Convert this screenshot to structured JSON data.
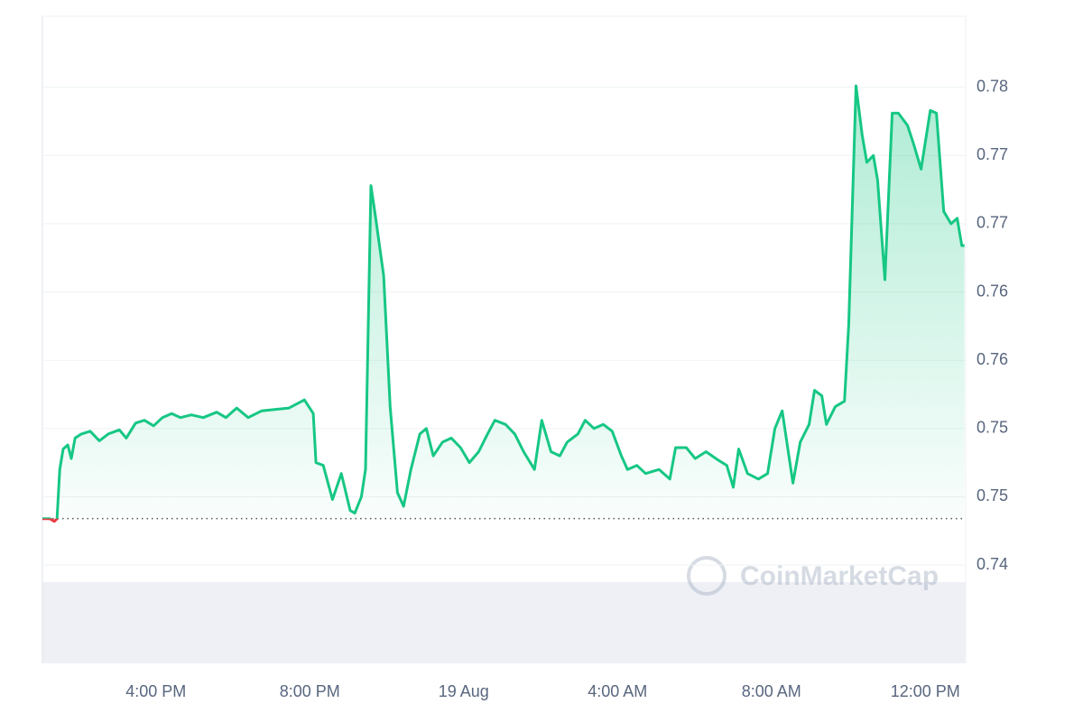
{
  "chart_data": {
    "type": "line",
    "watermark": "CoinMarketCap",
    "color": "#16c784",
    "down_color": "#ea3943",
    "grid": true,
    "reference_line": 0.7459,
    "x": [
      13.05,
      13.24,
      13.36,
      13.43,
      13.5,
      13.59,
      13.71,
      13.8,
      13.9,
      14.06,
      14.29,
      14.53,
      14.76,
      15.05,
      15.23,
      15.47,
      15.7,
      15.94,
      16.17,
      16.41,
      16.64,
      16.92,
      17.23,
      17.58,
      17.82,
      18.1,
      18.4,
      18.75,
      19.11,
      19.46,
      19.86,
      20.09,
      20.16,
      20.35,
      20.59,
      20.82,
      21.05,
      21.17,
      21.34,
      21.45,
      21.59,
      21.71,
      21.92,
      22.09,
      22.28,
      22.44,
      22.63,
      22.86,
      23.03,
      23.21,
      23.45,
      23.68,
      23.92,
      24.15,
      24.39,
      24.62,
      24.81,
      25.09,
      25.33,
      25.56,
      25.84,
      26.03,
      26.27,
      26.5,
      26.69,
      26.97,
      27.16,
      27.39,
      27.63,
      27.86,
      28.1,
      28.26,
      28.5,
      28.73,
      29.08,
      29.36,
      29.51,
      29.79,
      30.02,
      30.3,
      30.61,
      30.84,
      31.01,
      31.15,
      31.38,
      31.66,
      31.9,
      32.09,
      32.28,
      32.56,
      32.75,
      32.98,
      33.12,
      33.31,
      33.43,
      33.66,
      33.9,
      34.01,
      34.2,
      34.36,
      34.48,
      34.65,
      34.76,
      34.95,
      35.14,
      35.3,
      35.54,
      35.7,
      35.89,
      36.13,
      36.29,
      36.48,
      36.67,
      36.83,
      36.95,
      37.02
    ],
    "values": [
      0.7459,
      0.7459,
      0.7457,
      0.7459,
      0.7495,
      0.751,
      0.7513,
      0.7503,
      0.7518,
      0.7521,
      0.7523,
      0.7516,
      0.7521,
      0.7524,
      0.7518,
      0.7529,
      0.7531,
      0.7527,
      0.7533,
      0.7536,
      0.7533,
      0.7535,
      0.7533,
      0.7537,
      0.7533,
      0.754,
      0.7533,
      0.7538,
      0.7539,
      0.754,
      0.7546,
      0.7536,
      0.75,
      0.7498,
      0.7473,
      0.7492,
      0.7465,
      0.7463,
      0.7475,
      0.7495,
      0.7703,
      0.768,
      0.7637,
      0.7541,
      0.7478,
      0.7468,
      0.7495,
      0.7521,
      0.7525,
      0.7505,
      0.7515,
      0.7518,
      0.7511,
      0.75,
      0.7508,
      0.7521,
      0.7531,
      0.7528,
      0.7521,
      0.7508,
      0.7495,
      0.7531,
      0.7508,
      0.7505,
      0.7515,
      0.7521,
      0.7531,
      0.7525,
      0.7528,
      0.7523,
      0.7505,
      0.7495,
      0.7498,
      0.7492,
      0.7495,
      0.7488,
      0.7511,
      0.7511,
      0.7503,
      0.7508,
      0.7502,
      0.7498,
      0.7482,
      0.751,
      0.7492,
      0.7488,
      0.7492,
      0.7525,
      0.7538,
      0.7485,
      0.7515,
      0.7528,
      0.7553,
      0.7549,
      0.7528,
      0.7541,
      0.7545,
      0.7601,
      0.7776,
      0.774,
      0.772,
      0.7725,
      0.7707,
      0.7634,
      0.7756,
      0.7756,
      0.7747,
      0.7733,
      0.7715,
      0.7758,
      0.7756,
      0.7684,
      0.7675,
      0.7679,
      0.7659,
      0.7659
    ],
    "xlim": [
      13.05,
      37.05
    ],
    "xticks": [
      {
        "value": 16,
        "label": "4:00 PM"
      },
      {
        "value": 20,
        "label": "8:00 PM"
      },
      {
        "value": 24,
        "label": "19 Aug"
      },
      {
        "value": 28,
        "label": "4:00 AM"
      },
      {
        "value": 32,
        "label": "8:00 AM"
      },
      {
        "value": 36,
        "label": "12:00 PM"
      }
    ],
    "ylim": [
      0.7353,
      0.7827
    ],
    "yticks": [
      {
        "value": 0.7775,
        "label": "0.78"
      },
      {
        "value": 0.7725,
        "label": "0.77"
      },
      {
        "value": 0.7675,
        "label": "0.77"
      },
      {
        "value": 0.7625,
        "label": "0.76"
      },
      {
        "value": 0.7575,
        "label": "0.76"
      },
      {
        "value": 0.7525,
        "label": "0.75"
      },
      {
        "value": 0.7475,
        "label": "0.75"
      },
      {
        "value": 0.7425,
        "label": "0.74"
      }
    ]
  }
}
